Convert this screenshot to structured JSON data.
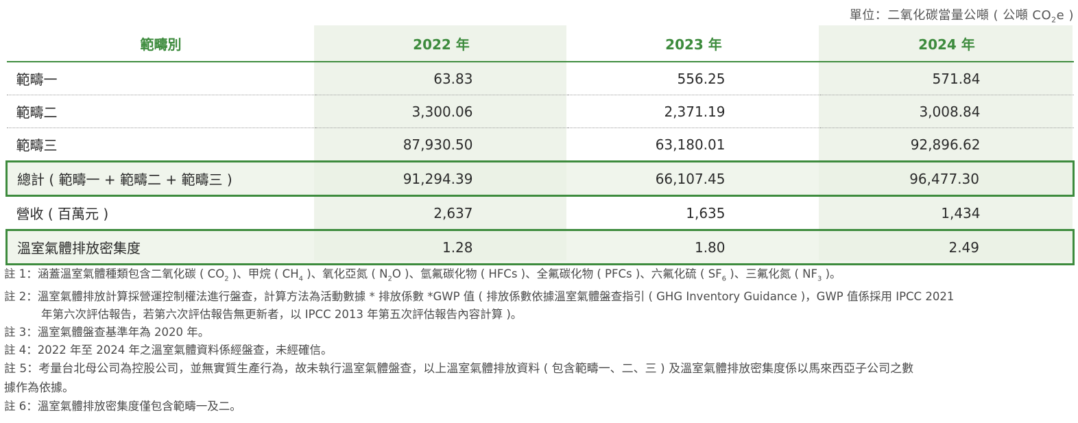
{
  "unit_label": "單位：二氧化碳當量公噸 ( 公噸 CO",
  "unit_sub": "2",
  "unit_tail": "e )",
  "table": {
    "headers": [
      "範疇別",
      "2022 年",
      "2023 年",
      "2024 年"
    ],
    "rows": [
      {
        "label": "範疇一",
        "values": [
          "63.83",
          "556.25",
          "571.84"
        ]
      },
      {
        "label": "範疇二",
        "values": [
          "3,300.06",
          "2,371.19",
          "3,008.84"
        ]
      },
      {
        "label": "範疇三",
        "values": [
          "87,930.50",
          "63,180.01",
          "92,896.62"
        ]
      },
      {
        "label": "總計 ( 範疇一 + 範疇二 + 範疇三 )",
        "values": [
          "91,294.39",
          "66,107.45",
          "96,477.30"
        ]
      },
      {
        "label": "營收 ( 百萬元 )",
        "values": [
          "2,637",
          "1,635",
          "1,434"
        ]
      },
      {
        "label": "溫室氣體排放密集度",
        "values": [
          "1.28",
          "1.80",
          "2.49"
        ]
      }
    ]
  },
  "notes": {
    "n1_a": "註 1：涵蓋溫室氣體種類包含二氧化碳 ( CO",
    "n1_b": " )、甲烷 ( CH",
    "n1_c": " )、氧化亞氮 ( N",
    "n1_d": "O )、氫氟碳化物 ( HFCs )、全氟碳化物 ( PFCs )、六氟化硫 ( SF",
    "n1_e": " )、三氟化氮 ( NF",
    "n1_f": " )。",
    "sub2": "2",
    "sub4": "4",
    "sub6": "6",
    "sub3": "3",
    "n2_line1": "註 2：溫室氣體排放計算採營運控制權法進行盤查，計算方法為活動數據 * 排放係數 *GWP 值 ( 排放係數依據溫室氣體盤查指引 ( GHG Inventory Guidance )，GWP 值係採用 IPCC 2021",
    "n2_line2": "年第六次評估報告，若第六次評估報告無更新者，以 IPCC 2013 年第五次評估報告內容計算 )。",
    "n3": "註 3：溫室氣體盤查基準年為 2020 年。",
    "n4": "註 4：2022 年至 2024 年之溫室氣體資料係經盤查，未經確信。",
    "n5_line1": "註 5：考量台北母公司為控股公司，並無實質生產行為，故未執行溫室氣體盤查，以上溫室氣體排放資料 ( 包含範疇一、二、三 ) 及溫室氣體排放密集度係以馬來西亞子公司之數",
    "n5_line2": "據作為依據。",
    "n6": "註 6：溫室氣體排放密集度僅包含範疇一及二。"
  },
  "colors": {
    "accent": "#3d8b3d",
    "column_shade": "#eef3ea"
  }
}
